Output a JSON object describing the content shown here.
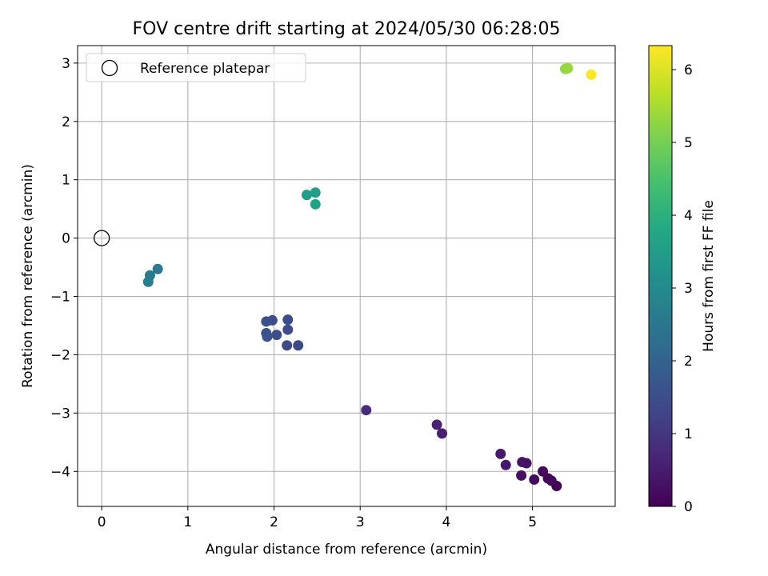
{
  "chart_data": {
    "type": "scatter",
    "title": "FOV centre drift starting at 2024/05/30 06:28:05",
    "xlabel": "Angular distance from reference (arcmin)",
    "ylabel": "Rotation from reference (arcmin)",
    "xlim": [
      -0.28,
      5.96
    ],
    "ylim": [
      -4.6,
      3.3
    ],
    "xticks": [
      0,
      1,
      2,
      3,
      4,
      5
    ],
    "yticks": [
      -4,
      -3,
      -2,
      -1,
      0,
      1,
      2,
      3
    ],
    "grid": true,
    "legend": {
      "location": "upper-left",
      "entries": [
        "Reference platepar"
      ]
    },
    "reference": {
      "x": 0,
      "y": 0
    },
    "colorbar": {
      "label": "Hours from first FF file",
      "colormap": "viridis",
      "min": 0,
      "max": 6.33,
      "ticks": [
        0,
        1,
        2,
        3,
        4,
        5,
        6
      ]
    },
    "points": [
      {
        "x": 5.28,
        "y": -4.25,
        "c": 0.0
      },
      {
        "x": 5.22,
        "y": -4.16,
        "c": 0.05
      },
      {
        "x": 5.18,
        "y": -4.12,
        "c": 0.1
      },
      {
        "x": 5.12,
        "y": -4.0,
        "c": 0.15
      },
      {
        "x": 5.02,
        "y": -4.14,
        "c": 0.2
      },
      {
        "x": 4.87,
        "y": -4.07,
        "c": 0.25
      },
      {
        "x": 4.93,
        "y": -3.86,
        "c": 0.3
      },
      {
        "x": 4.88,
        "y": -3.84,
        "c": 0.35
      },
      {
        "x": 4.69,
        "y": -3.89,
        "c": 0.4
      },
      {
        "x": 4.63,
        "y": -3.7,
        "c": 0.45
      },
      {
        "x": 3.95,
        "y": -3.35,
        "c": 0.55
      },
      {
        "x": 3.89,
        "y": -3.2,
        "c": 0.6
      },
      {
        "x": 3.07,
        "y": -2.95,
        "c": 0.8
      },
      {
        "x": 2.28,
        "y": -1.84,
        "c": 1.4
      },
      {
        "x": 2.15,
        "y": -1.84,
        "c": 1.42
      },
      {
        "x": 2.16,
        "y": -1.57,
        "c": 1.45
      },
      {
        "x": 2.16,
        "y": -1.4,
        "c": 1.47
      },
      {
        "x": 2.03,
        "y": -1.66,
        "c": 1.5
      },
      {
        "x": 1.98,
        "y": -1.41,
        "c": 1.52
      },
      {
        "x": 1.91,
        "y": -1.43,
        "c": 1.55
      },
      {
        "x": 1.91,
        "y": -1.63,
        "c": 1.57
      },
      {
        "x": 1.92,
        "y": -1.69,
        "c": 1.6
      },
      {
        "x": 0.65,
        "y": -0.53,
        "c": 2.55
      },
      {
        "x": 0.56,
        "y": -0.64,
        "c": 2.6
      },
      {
        "x": 0.54,
        "y": -0.75,
        "c": 2.65
      },
      {
        "x": 2.38,
        "y": 0.74,
        "c": 3.5
      },
      {
        "x": 2.48,
        "y": 0.78,
        "c": 3.55
      },
      {
        "x": 2.48,
        "y": 0.58,
        "c": 3.6
      },
      {
        "x": 5.38,
        "y": 2.9,
        "c": 5.3
      },
      {
        "x": 5.41,
        "y": 2.91,
        "c": 5.35
      },
      {
        "x": 5.68,
        "y": 2.8,
        "c": 6.33
      }
    ]
  }
}
